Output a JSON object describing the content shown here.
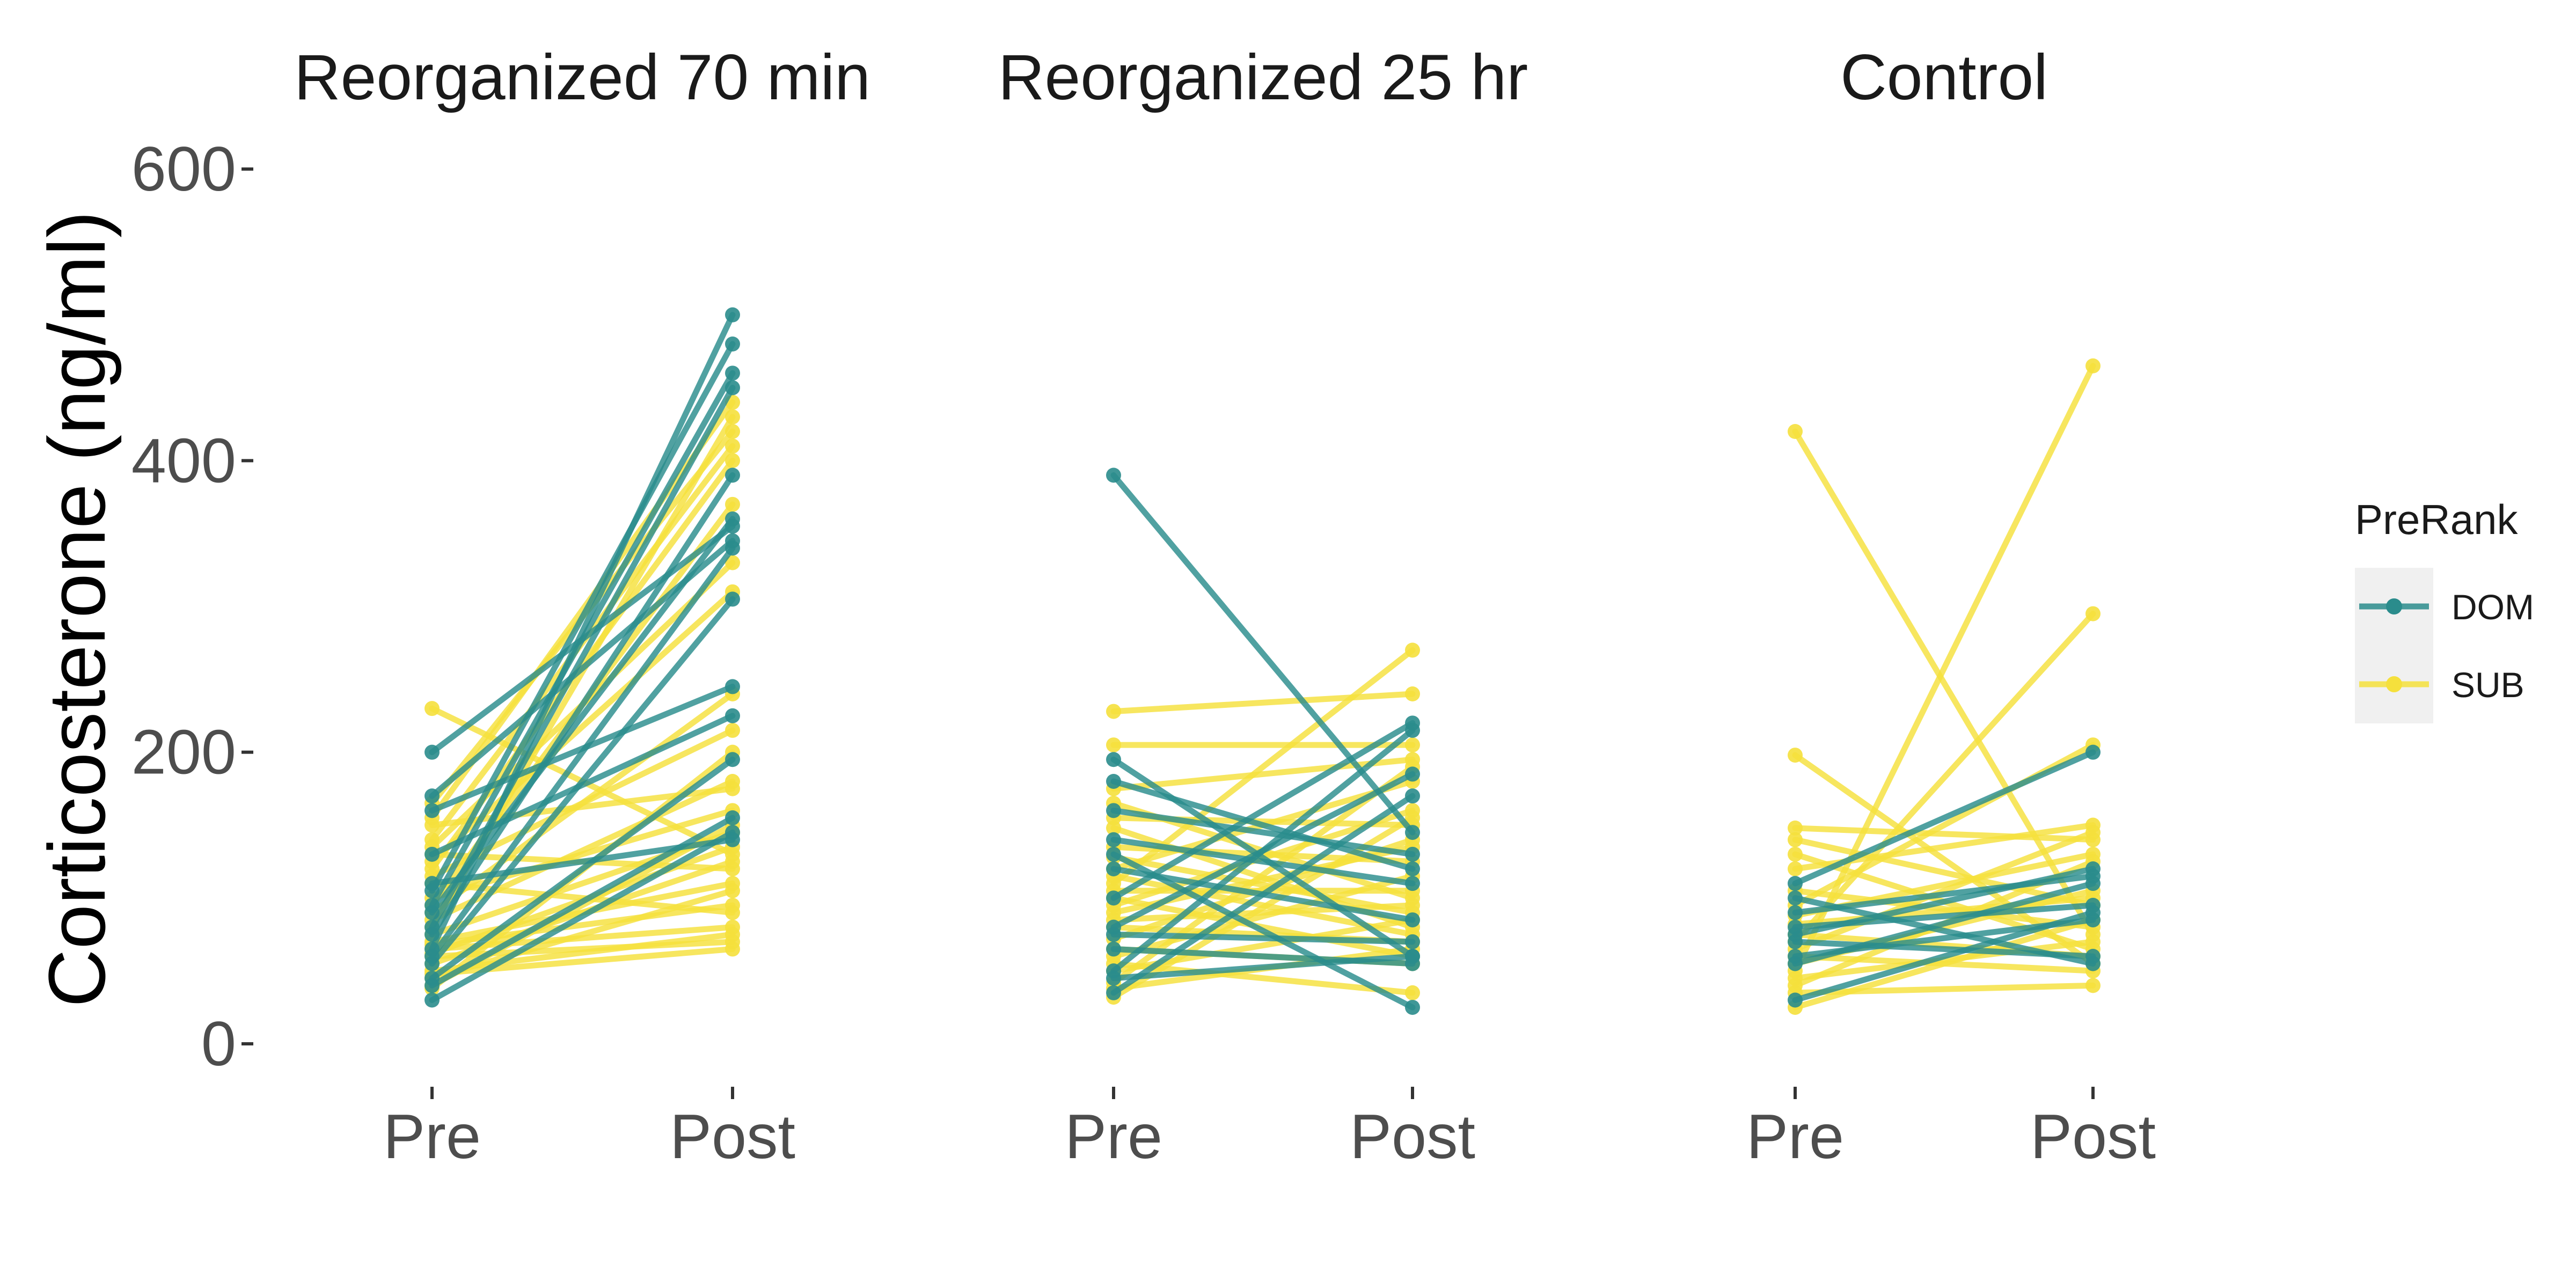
{
  "chart_data": {
    "type": "line",
    "ylabel": "Corticosterone (ng/ml)",
    "xlabel": "",
    "ylim": [
      0,
      600
    ],
    "yticks": [
      "0",
      "200",
      "400",
      "600"
    ],
    "x_categories": [
      "Pre",
      "Post"
    ],
    "grid": false,
    "legend": {
      "title": "PreRank",
      "position": "right",
      "entries": [
        {
          "label": "DOM",
          "color": "#2a8c8c"
        },
        {
          "label": "SUB",
          "color": "#f5e03c"
        }
      ]
    },
    "panels": [
      {
        "title": "Reorganized 70 min",
        "series": [
          {
            "group": "DOM",
            "pre": 200,
            "post": 355
          },
          {
            "group": "DOM",
            "pre": 170,
            "post": 345
          },
          {
            "group": "DOM",
            "pre": 160,
            "post": 245
          },
          {
            "group": "DOM",
            "pre": 130,
            "post": 225
          },
          {
            "group": "DOM",
            "pre": 105,
            "post": 480
          },
          {
            "group": "DOM",
            "pre": 95,
            "post": 460
          },
          {
            "group": "DOM",
            "pre": 80,
            "post": 450
          },
          {
            "group": "DOM",
            "pre": 75,
            "post": 390
          },
          {
            "group": "DOM",
            "pre": 65,
            "post": 500
          },
          {
            "group": "DOM",
            "pre": 60,
            "post": 340
          },
          {
            "group": "DOM",
            "pre": 55,
            "post": 305
          },
          {
            "group": "DOM",
            "pre": 45,
            "post": 195
          },
          {
            "group": "DOM",
            "pre": 40,
            "post": 155
          },
          {
            "group": "DOM",
            "pre": 30,
            "post": 145
          },
          {
            "group": "DOM",
            "pre": 90,
            "post": 360
          },
          {
            "group": "DOM",
            "pre": 110,
            "post": 140
          },
          {
            "group": "SUB",
            "pre": 230,
            "post": 130
          },
          {
            "group": "SUB",
            "pre": 165,
            "post": 420
          },
          {
            "group": "SUB",
            "pre": 155,
            "post": 440
          },
          {
            "group": "SUB",
            "pre": 150,
            "post": 175
          },
          {
            "group": "SUB",
            "pre": 140,
            "post": 410
          },
          {
            "group": "SUB",
            "pre": 135,
            "post": 330
          },
          {
            "group": "SUB",
            "pre": 130,
            "post": 120
          },
          {
            "group": "SUB",
            "pre": 125,
            "post": 310
          },
          {
            "group": "SUB",
            "pre": 120,
            "post": 400
          },
          {
            "group": "SUB",
            "pre": 115,
            "post": 215
          },
          {
            "group": "SUB",
            "pre": 110,
            "post": 90
          },
          {
            "group": "SUB",
            "pre": 100,
            "post": 160
          },
          {
            "group": "SUB",
            "pre": 95,
            "post": 370
          },
          {
            "group": "SUB",
            "pre": 90,
            "post": 240
          },
          {
            "group": "SUB",
            "pre": 85,
            "post": 180
          },
          {
            "group": "SUB",
            "pre": 80,
            "post": 430
          },
          {
            "group": "SUB",
            "pre": 75,
            "post": 145
          },
          {
            "group": "SUB",
            "pre": 70,
            "post": 110
          },
          {
            "group": "SUB",
            "pre": 68,
            "post": 95
          },
          {
            "group": "SUB",
            "pre": 65,
            "post": 80
          },
          {
            "group": "SUB",
            "pre": 62,
            "post": 135
          },
          {
            "group": "SUB",
            "pre": 60,
            "post": 70
          },
          {
            "group": "SUB",
            "pre": 55,
            "post": 125
          },
          {
            "group": "SUB",
            "pre": 50,
            "post": 75
          },
          {
            "group": "SUB",
            "pre": 48,
            "post": 65
          },
          {
            "group": "SUB",
            "pre": 45,
            "post": 105
          },
          {
            "group": "SUB",
            "pre": 40,
            "post": 150
          },
          {
            "group": "SUB",
            "pre": 38,
            "post": 200
          }
        ]
      },
      {
        "title": "Reorganized 25 hr",
        "series": [
          {
            "group": "DOM",
            "pre": 390,
            "post": 145
          },
          {
            "group": "DOM",
            "pre": 195,
            "post": 60
          },
          {
            "group": "DOM",
            "pre": 180,
            "post": 120
          },
          {
            "group": "DOM",
            "pre": 160,
            "post": 130
          },
          {
            "group": "DOM",
            "pre": 140,
            "post": 110
          },
          {
            "group": "DOM",
            "pre": 130,
            "post": 25
          },
          {
            "group": "DOM",
            "pre": 120,
            "post": 85
          },
          {
            "group": "DOM",
            "pre": 100,
            "post": 220
          },
          {
            "group": "DOM",
            "pre": 80,
            "post": 185
          },
          {
            "group": "DOM",
            "pre": 75,
            "post": 70
          },
          {
            "group": "DOM",
            "pre": 65,
            "post": 55
          },
          {
            "group": "DOM",
            "pre": 50,
            "post": 215
          },
          {
            "group": "DOM",
            "pre": 45,
            "post": 60
          },
          {
            "group": "DOM",
            "pre": 35,
            "post": 170
          },
          {
            "group": "SUB",
            "pre": 228,
            "post": 240
          },
          {
            "group": "SUB",
            "pre": 205,
            "post": 205
          },
          {
            "group": "SUB",
            "pre": 175,
            "post": 195
          },
          {
            "group": "SUB",
            "pre": 165,
            "post": 100
          },
          {
            "group": "SUB",
            "pre": 155,
            "post": 150
          },
          {
            "group": "SUB",
            "pre": 148,
            "post": 80
          },
          {
            "group": "SUB",
            "pre": 135,
            "post": 125
          },
          {
            "group": "SUB",
            "pre": 128,
            "post": 90
          },
          {
            "group": "SUB",
            "pre": 120,
            "post": 180
          },
          {
            "group": "SUB",
            "pre": 115,
            "post": 75
          },
          {
            "group": "SUB",
            "pre": 110,
            "post": 270
          },
          {
            "group": "SUB",
            "pre": 105,
            "post": 105
          },
          {
            "group": "SUB",
            "pre": 100,
            "post": 60
          },
          {
            "group": "SUB",
            "pre": 95,
            "post": 160
          },
          {
            "group": "SUB",
            "pre": 90,
            "post": 135
          },
          {
            "group": "SUB",
            "pre": 85,
            "post": 95
          },
          {
            "group": "SUB",
            "pre": 80,
            "post": 70
          },
          {
            "group": "SUB",
            "pre": 72,
            "post": 140
          },
          {
            "group": "SUB",
            "pre": 65,
            "post": 55
          },
          {
            "group": "SUB",
            "pre": 60,
            "post": 115
          },
          {
            "group": "SUB",
            "pre": 55,
            "post": 35
          },
          {
            "group": "SUB",
            "pre": 50,
            "post": 85
          },
          {
            "group": "SUB",
            "pre": 42,
            "post": 190
          },
          {
            "group": "SUB",
            "pre": 38,
            "post": 65
          },
          {
            "group": "SUB",
            "pre": 32,
            "post": 155
          }
        ]
      },
      {
        "title": "Control",
        "series": [
          {
            "group": "DOM",
            "pre": 110,
            "post": 200
          },
          {
            "group": "DOM",
            "pre": 100,
            "post": 55
          },
          {
            "group": "DOM",
            "pre": 90,
            "post": 115
          },
          {
            "group": "DOM",
            "pre": 80,
            "post": 95
          },
          {
            "group": "DOM",
            "pre": 75,
            "post": 120
          },
          {
            "group": "DOM",
            "pre": 70,
            "post": 60
          },
          {
            "group": "DOM",
            "pre": 60,
            "post": 85
          },
          {
            "group": "DOM",
            "pre": 55,
            "post": 110
          },
          {
            "group": "DOM",
            "pre": 30,
            "post": 90
          },
          {
            "group": "SUB",
            "pre": 420,
            "post": 75
          },
          {
            "group": "SUB",
            "pre": 198,
            "post": 55
          },
          {
            "group": "SUB",
            "pre": 148,
            "post": 140
          },
          {
            "group": "SUB",
            "pre": 140,
            "post": 95
          },
          {
            "group": "SUB",
            "pre": 130,
            "post": 65
          },
          {
            "group": "SUB",
            "pre": 120,
            "post": 150
          },
          {
            "group": "SUB",
            "pre": 105,
            "post": 80
          },
          {
            "group": "SUB",
            "pre": 95,
            "post": 205
          },
          {
            "group": "SUB",
            "pre": 88,
            "post": 130
          },
          {
            "group": "SUB",
            "pre": 82,
            "post": 100
          },
          {
            "group": "SUB",
            "pre": 75,
            "post": 60
          },
          {
            "group": "SUB",
            "pre": 70,
            "post": 295
          },
          {
            "group": "SUB",
            "pre": 65,
            "post": 145
          },
          {
            "group": "SUB",
            "pre": 60,
            "post": 50
          },
          {
            "group": "SUB",
            "pre": 55,
            "post": 105
          },
          {
            "group": "SUB",
            "pre": 50,
            "post": 465
          },
          {
            "group": "SUB",
            "pre": 45,
            "post": 70
          },
          {
            "group": "SUB",
            "pre": 40,
            "post": 125
          },
          {
            "group": "SUB",
            "pre": 35,
            "post": 40
          },
          {
            "group": "SUB",
            "pre": 25,
            "post": 85
          }
        ]
      }
    ]
  }
}
